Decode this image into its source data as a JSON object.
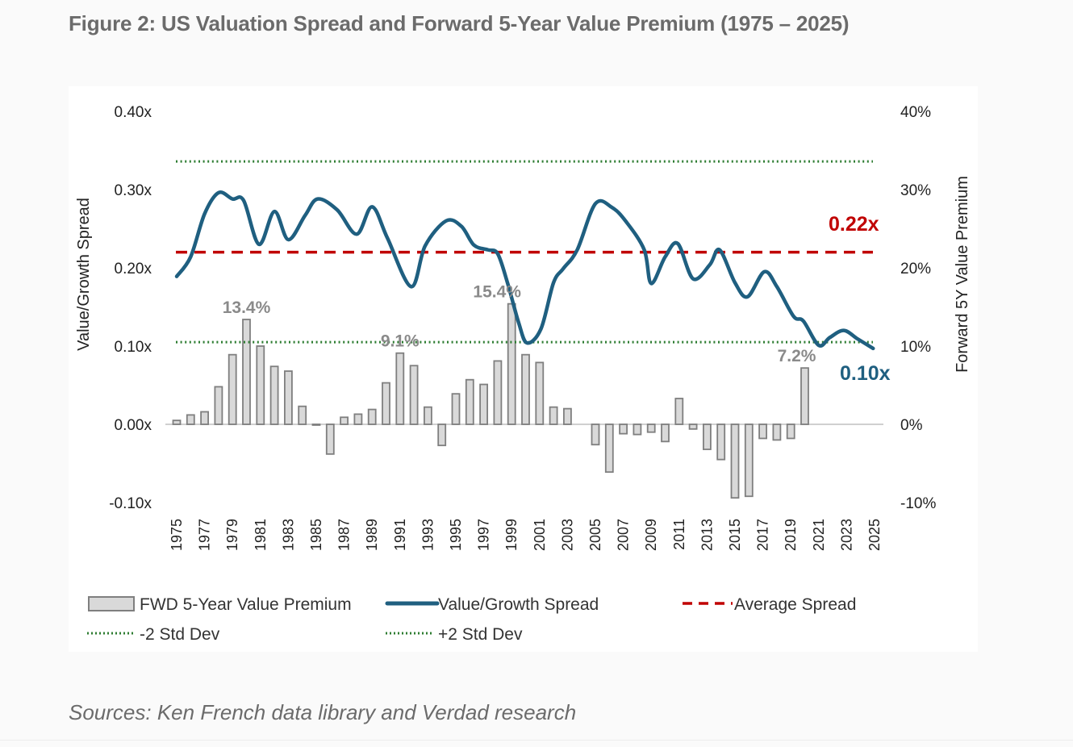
{
  "title": "Figure 2: US Valuation Spread and Forward 5-Year Value Premium (1975 – 2025)",
  "source": "Sources:  Ken French data library and Verdad research",
  "colors": {
    "spread_line": "#1f5f80",
    "average_line": "#c00000",
    "std_dev_line": "#2e7d32",
    "bar_fill": "#d9d9d9",
    "bar_stroke": "#7f7f7f",
    "zero_line": "#d0d0d0",
    "bar_annotation": "#8a8a8a"
  },
  "chart_data": {
    "type": "bar+line",
    "title": "US Valuation Spread and Forward 5-Year Value Premium (1975 – 2025)",
    "left_axis": {
      "label": "Value/Growth Spread",
      "range": [
        -0.1,
        0.4
      ],
      "ticks": [
        "-0.10x",
        "0.00x",
        "0.10x",
        "0.20x",
        "0.30x",
        "0.40x"
      ],
      "tick_values": [
        -0.1,
        0.0,
        0.1,
        0.2,
        0.3,
        0.4
      ]
    },
    "right_axis": {
      "label": "Forward 5Y Value Premium",
      "range": [
        -10,
        40
      ],
      "ticks": [
        "-10%",
        "0%",
        "10%",
        "20%",
        "30%",
        "40%"
      ],
      "tick_values": [
        -10,
        0,
        10,
        20,
        30,
        40
      ]
    },
    "x_axis": {
      "range": [
        1975,
        2025
      ],
      "tick_labels": [
        "1975",
        "1977",
        "1979",
        "1981",
        "1983",
        "1985",
        "1987",
        "1989",
        "1991",
        "1993",
        "1995",
        "1997",
        "1999",
        "2001",
        "2003",
        "2005",
        "2007",
        "2009",
        "2011",
        "2013",
        "2015",
        "2017",
        "2019",
        "2021",
        "2023",
        "2025"
      ]
    },
    "bars": {
      "name": "FWD 5-Year Value Premium",
      "axis": "right",
      "unit": "%",
      "years": [
        1975,
        1976,
        1977,
        1978,
        1979,
        1980,
        1981,
        1982,
        1983,
        1984,
        1985,
        1986,
        1987,
        1988,
        1989,
        1990,
        1991,
        1992,
        1993,
        1994,
        1995,
        1996,
        1997,
        1998,
        1999,
        2000,
        2001,
        2002,
        2003,
        2004,
        2005,
        2006,
        2007,
        2008,
        2009,
        2010,
        2011,
        2012,
        2013,
        2014,
        2015,
        2016,
        2017,
        2018,
        2019,
        2020
      ],
      "values": [
        0.5,
        1.2,
        1.6,
        4.8,
        8.9,
        13.4,
        10.0,
        7.4,
        6.8,
        2.3,
        -0.1,
        -3.8,
        0.9,
        1.3,
        1.9,
        5.3,
        9.1,
        7.5,
        2.2,
        -2.7,
        3.9,
        5.7,
        5.1,
        8.1,
        15.4,
        8.9,
        7.9,
        2.2,
        2.0,
        0.0,
        -2.6,
        -6.1,
        -1.2,
        -1.3,
        -1.0,
        -2.2,
        3.3,
        -0.6,
        -3.2,
        -4.5,
        -9.4,
        -9.2,
        -1.8,
        -2.0,
        -1.8,
        7.2
      ]
    },
    "bar_annotations": [
      {
        "year": 1980,
        "label": "13.4%"
      },
      {
        "year": 1991,
        "label": "9.1%"
      },
      {
        "year": 1999,
        "label": "15.4%"
      },
      {
        "year": 2020,
        "label": "7.2%"
      }
    ],
    "spread_series": {
      "name": "Value/Growth Spread",
      "axis": "left",
      "x": [
        1975,
        1976,
        1977,
        1978,
        1979,
        1979.8,
        1980.9,
        1982,
        1983,
        1984.2,
        1985.1,
        1986.5,
        1987.9,
        1989,
        1990.1,
        1991.8,
        1992.8,
        1994.3,
        1995.4,
        1996.3,
        1997.3,
        1998,
        1998.7,
        1999.5,
        2000.1,
        2001.1,
        2002,
        2002.7,
        2003.7,
        2005,
        2006.2,
        2007.2,
        2008.5,
        2009,
        2010,
        2010.9,
        2012,
        2013.2,
        2013.9,
        2015,
        2015.9,
        2017.1,
        2018,
        2019.2,
        2019.9,
        2021,
        2021.8,
        2022.8,
        2023.8,
        2024.9
      ],
      "y": [
        0.189,
        0.214,
        0.269,
        0.296,
        0.288,
        0.286,
        0.23,
        0.272,
        0.236,
        0.267,
        0.288,
        0.274,
        0.243,
        0.278,
        0.238,
        0.176,
        0.228,
        0.26,
        0.253,
        0.229,
        0.223,
        0.218,
        0.181,
        0.13,
        0.104,
        0.122,
        0.181,
        0.199,
        0.223,
        0.282,
        0.277,
        0.259,
        0.223,
        0.18,
        0.214,
        0.231,
        0.186,
        0.204,
        0.223,
        0.181,
        0.163,
        0.195,
        0.176,
        0.138,
        0.132,
        0.101,
        0.111,
        0.12,
        0.109,
        0.097
      ]
    },
    "reference_lines": [
      {
        "name": "Average Spread",
        "value": 0.22,
        "style": "dashed"
      },
      {
        "name": "+2 Std Dev",
        "value": 0.336,
        "style": "dotted"
      },
      {
        "name": "-2 Std Dev",
        "value": 0.105,
        "style": "dotted"
      }
    ],
    "annotations": [
      {
        "label": "0.22x",
        "target": "Average Spread"
      },
      {
        "label": "0.10x",
        "target": "Value/Growth Spread latest"
      }
    ],
    "legend": {
      "placement": "bottom",
      "items": [
        {
          "label": "FWD 5-Year Value Premium",
          "kind": "bar"
        },
        {
          "label": "Value/Growth Spread",
          "kind": "line"
        },
        {
          "label": "Average Spread",
          "kind": "dashed"
        },
        {
          "label": "-2 Std Dev",
          "kind": "dotted"
        },
        {
          "label": "+2 Std Dev",
          "kind": "dotted"
        }
      ]
    },
    "grid": false
  }
}
